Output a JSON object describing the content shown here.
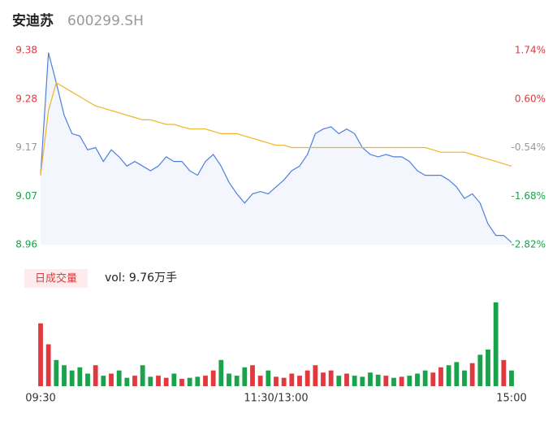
{
  "header": {
    "name": "安迪苏",
    "code": "600299.SH"
  },
  "chart_data": [
    {
      "type": "line",
      "categories": [
        "09:30",
        null,
        null,
        null,
        null,
        null,
        null,
        null,
        null,
        null,
        null,
        null,
        null,
        null,
        null,
        null,
        null,
        null,
        null,
        null,
        null,
        null,
        null,
        null,
        null,
        null,
        null,
        null,
        null,
        null,
        "11:30/13:00",
        null,
        null,
        null,
        null,
        null,
        null,
        null,
        null,
        null,
        null,
        null,
        null,
        null,
        null,
        null,
        null,
        null,
        null,
        null,
        null,
        null,
        null,
        null,
        null,
        null,
        null,
        null,
        null,
        null,
        "15:00"
      ],
      "series": [
        {
          "name": "price",
          "color": "#4e7fe0",
          "values": [
            9.11,
            9.375,
            9.31,
            9.24,
            9.2,
            9.195,
            9.165,
            9.17,
            9.14,
            9.165,
            9.15,
            9.13,
            9.14,
            9.13,
            9.12,
            9.13,
            9.15,
            9.14,
            9.14,
            9.12,
            9.11,
            9.14,
            9.155,
            9.13,
            9.095,
            9.07,
            9.05,
            9.07,
            9.075,
            9.07,
            9.085,
            9.1,
            9.12,
            9.13,
            9.155,
            9.2,
            9.21,
            9.215,
            9.2,
            9.21,
            9.2,
            9.17,
            9.155,
            9.15,
            9.155,
            9.15,
            9.15,
            9.14,
            9.12,
            9.11,
            9.11,
            9.11,
            9.1,
            9.085,
            9.06,
            9.07,
            9.05,
            9.005,
            8.98,
            8.98,
            8.965
          ]
        },
        {
          "name": "average",
          "color": "#f0b429",
          "values": [
            9.11,
            9.25,
            9.31,
            9.3,
            9.29,
            9.28,
            9.27,
            9.26,
            9.255,
            9.25,
            9.245,
            9.24,
            9.235,
            9.23,
            9.23,
            9.225,
            9.22,
            9.22,
            9.215,
            9.21,
            9.21,
            9.21,
            9.205,
            9.2,
            9.2,
            9.2,
            9.195,
            9.19,
            9.185,
            9.18,
            9.175,
            9.175,
            9.17,
            9.17,
            9.17,
            9.17,
            9.17,
            9.17,
            9.17,
            9.17,
            9.17,
            9.17,
            9.17,
            9.17,
            9.17,
            9.17,
            9.17,
            9.17,
            9.17,
            9.17,
            9.165,
            9.16,
            9.16,
            9.16,
            9.16,
            9.155,
            9.15,
            9.145,
            9.14,
            9.135,
            9.13
          ]
        }
      ],
      "ylim": [
        8.96,
        9.38
      ],
      "yticks": [
        9.38,
        {
          "value": 9.275,
          "label": "9.28"
        },
        9.17,
        {
          "value": 9.065,
          "label": "9.07"
        },
        8.96
      ],
      "y2lim": [
        -2.82,
        1.74
      ],
      "y2ticks": [
        {
          "value": 1.74,
          "label": "1.74%"
        },
        {
          "value": 0.6,
          "label": "0.60%"
        },
        {
          "value": -0.54,
          "label": "-0.54%"
        },
        {
          "value": -1.68,
          "label": "-1.68%"
        },
        {
          "value": -2.82,
          "label": "-2.82%"
        }
      ],
      "tick_colors": [
        "#e0393e",
        "#e0393e",
        "#999999",
        "#1aa34a",
        "#1aa34a"
      ],
      "area_color": "#f3f6fd"
    },
    {
      "type": "bar",
      "legend": "日成交量",
      "label": "vol: 9.76万手",
      "up_color": "#e0393e",
      "down_color": "#1aa34a",
      "values": [
        6000,
        4000,
        2500,
        2000,
        1500,
        1800,
        1200,
        2000,
        1000,
        1200,
        1500,
        800,
        1000,
        2000,
        900,
        1000,
        800,
        1200,
        700,
        800,
        900,
        1000,
        1500,
        2500,
        1200,
        1000,
        1800,
        2000,
        1000,
        1500,
        900,
        800,
        1200,
        1000,
        1500,
        2000,
        1300,
        1500,
        1000,
        1200,
        1000,
        900,
        1300,
        1100,
        1000,
        800,
        900,
        1000,
        1200,
        1500,
        1300,
        1800,
        2000,
        2300,
        1500,
        2200,
        3000,
        3500,
        8000,
        2500,
        1500
      ],
      "ylim": [
        0,
        8000
      ]
    }
  ]
}
